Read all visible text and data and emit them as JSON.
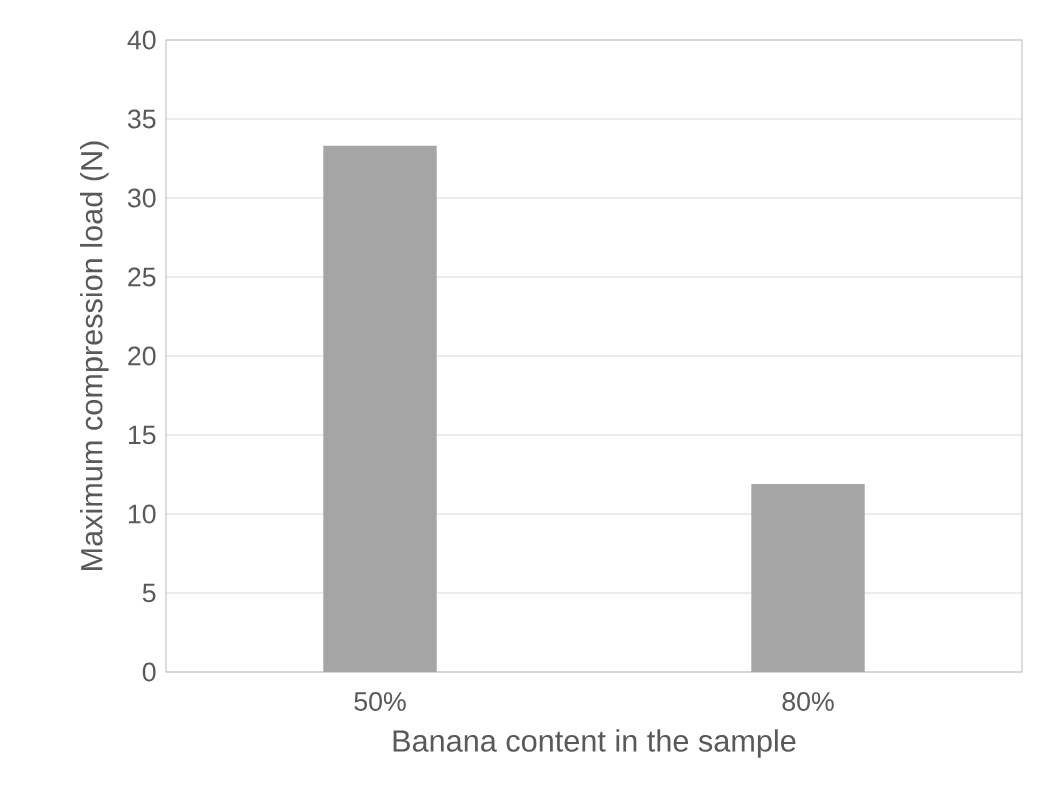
{
  "chart_data": {
    "type": "bar",
    "xlabel": "Banana content in the sample",
    "ylabel": "Maximum compression load (N)",
    "categories": [
      "50%",
      "80%"
    ],
    "values": [
      33.3,
      11.9
    ],
    "color": "#a5a5a5",
    "ylim": [
      0,
      40
    ],
    "yticks": [
      0,
      5,
      10,
      15,
      20,
      25,
      30,
      35,
      40
    ],
    "grid": "y"
  }
}
